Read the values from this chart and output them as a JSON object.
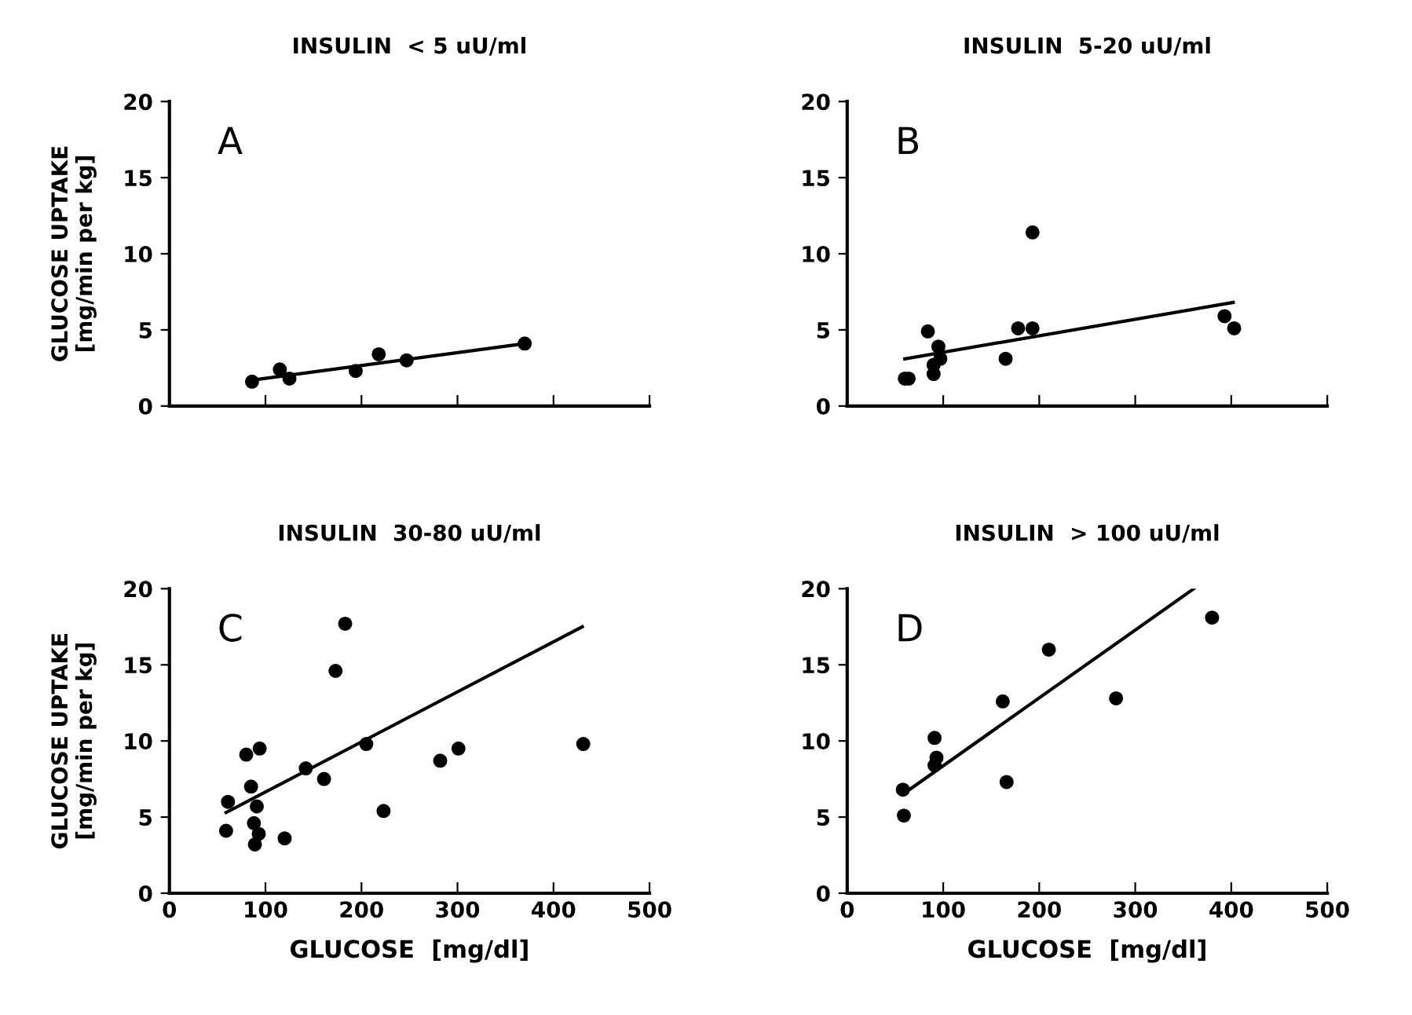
{
  "chart_data": [
    {
      "type": "scatter",
      "title": "INSULIN  < 5 uU/ml",
      "ylabel": "GLUCOSE UPTAKE\n[mg/min per kg]",
      "annotations": [
        "A"
      ],
      "xlim": [
        0,
        500
      ],
      "ylim": [
        0,
        20
      ],
      "xticks": [
        0,
        100,
        200,
        300,
        400,
        500
      ],
      "yticks": [
        0,
        5,
        10,
        15,
        20
      ],
      "tick_labels": "y",
      "series": [
        {
          "color": "#000000",
          "marker": "circle",
          "x": [
            86,
            115,
            125,
            194,
            218,
            247,
            370
          ],
          "values": [
            1.6,
            2.4,
            1.8,
            2.3,
            3.4,
            3.0,
            4.1
          ]
        },
        {
          "type": "line",
          "color": "#000000",
          "line_style": "solid",
          "x": [
            86,
            370
          ],
          "values": [
            1.7,
            4.1
          ]
        }
      ]
    },
    {
      "type": "scatter",
      "title": "INSULIN  5-20 uU/ml",
      "annotations": [
        "B"
      ],
      "xlim": [
        0,
        500
      ],
      "ylim": [
        0,
        20
      ],
      "xticks": [
        0,
        100,
        200,
        300,
        400,
        500
      ],
      "yticks": [
        0,
        5,
        10,
        15,
        20
      ],
      "tick_labels": "y",
      "series": [
        {
          "color": "#000000",
          "marker": "circle",
          "x": [
            60,
            64,
            84,
            90,
            90,
            95,
            97,
            165,
            178,
            193,
            193,
            393,
            403
          ],
          "values": [
            1.8,
            1.8,
            4.9,
            2.7,
            2.1,
            3.9,
            3.1,
            3.1,
            5.1,
            5.1,
            11.4,
            5.9,
            5.1
          ]
        },
        {
          "type": "line",
          "color": "#000000",
          "line_style": "solid",
          "x": [
            60,
            402
          ],
          "values": [
            3.1,
            6.8
          ]
        }
      ]
    },
    {
      "type": "scatter",
      "title": "INSULIN  30-80 uU/ml",
      "xlabel": "GLUCOSE  [mg/dl]",
      "ylabel": "GLUCOSE UPTAKE\n[mg/min per kg]",
      "annotations": [
        "C"
      ],
      "xlim": [
        0,
        500
      ],
      "ylim": [
        0,
        20
      ],
      "xticks": [
        0,
        100,
        200,
        300,
        400,
        500
      ],
      "yticks": [
        0,
        5,
        10,
        15,
        20
      ],
      "series": [
        {
          "color": "#000000",
          "marker": "circle",
          "x": [
            59,
            61,
            80,
            85,
            88,
            89,
            91,
            93,
            94,
            120,
            142,
            161,
            173,
            183,
            205,
            223,
            282,
            301,
            431
          ],
          "values": [
            4.1,
            6.0,
            9.1,
            7.0,
            4.6,
            3.2,
            5.7,
            3.9,
            9.5,
            3.6,
            8.2,
            7.5,
            14.6,
            17.7,
            9.8,
            5.4,
            8.7,
            9.5,
            9.8
          ]
        },
        {
          "type": "line",
          "color": "#000000",
          "line_style": "solid",
          "x": [
            59,
            430
          ],
          "values": [
            5.3,
            17.5
          ]
        }
      ]
    },
    {
      "type": "scatter",
      "title": "INSULIN  > 100 uU/ml",
      "xlabel": "GLUCOSE  [mg/dl]",
      "annotations": [
        "D"
      ],
      "xlim": [
        0,
        500
      ],
      "ylim": [
        0,
        20
      ],
      "xticks": [
        0,
        100,
        200,
        300,
        400,
        500
      ],
      "yticks": [
        0,
        5,
        10,
        15,
        20
      ],
      "series": [
        {
          "color": "#000000",
          "marker": "circle",
          "x": [
            58,
            59,
            91,
            93,
            91,
            162,
            166,
            210,
            280,
            380
          ],
          "values": [
            6.8,
            5.1,
            10.2,
            8.9,
            8.4,
            12.6,
            7.3,
            16.0,
            12.8,
            18.1
          ]
        },
        {
          "type": "line",
          "color": "#000000",
          "line_style": "solid",
          "x": [
            58,
            361
          ],
          "values": [
            6.5,
            20
          ]
        }
      ]
    }
  ]
}
